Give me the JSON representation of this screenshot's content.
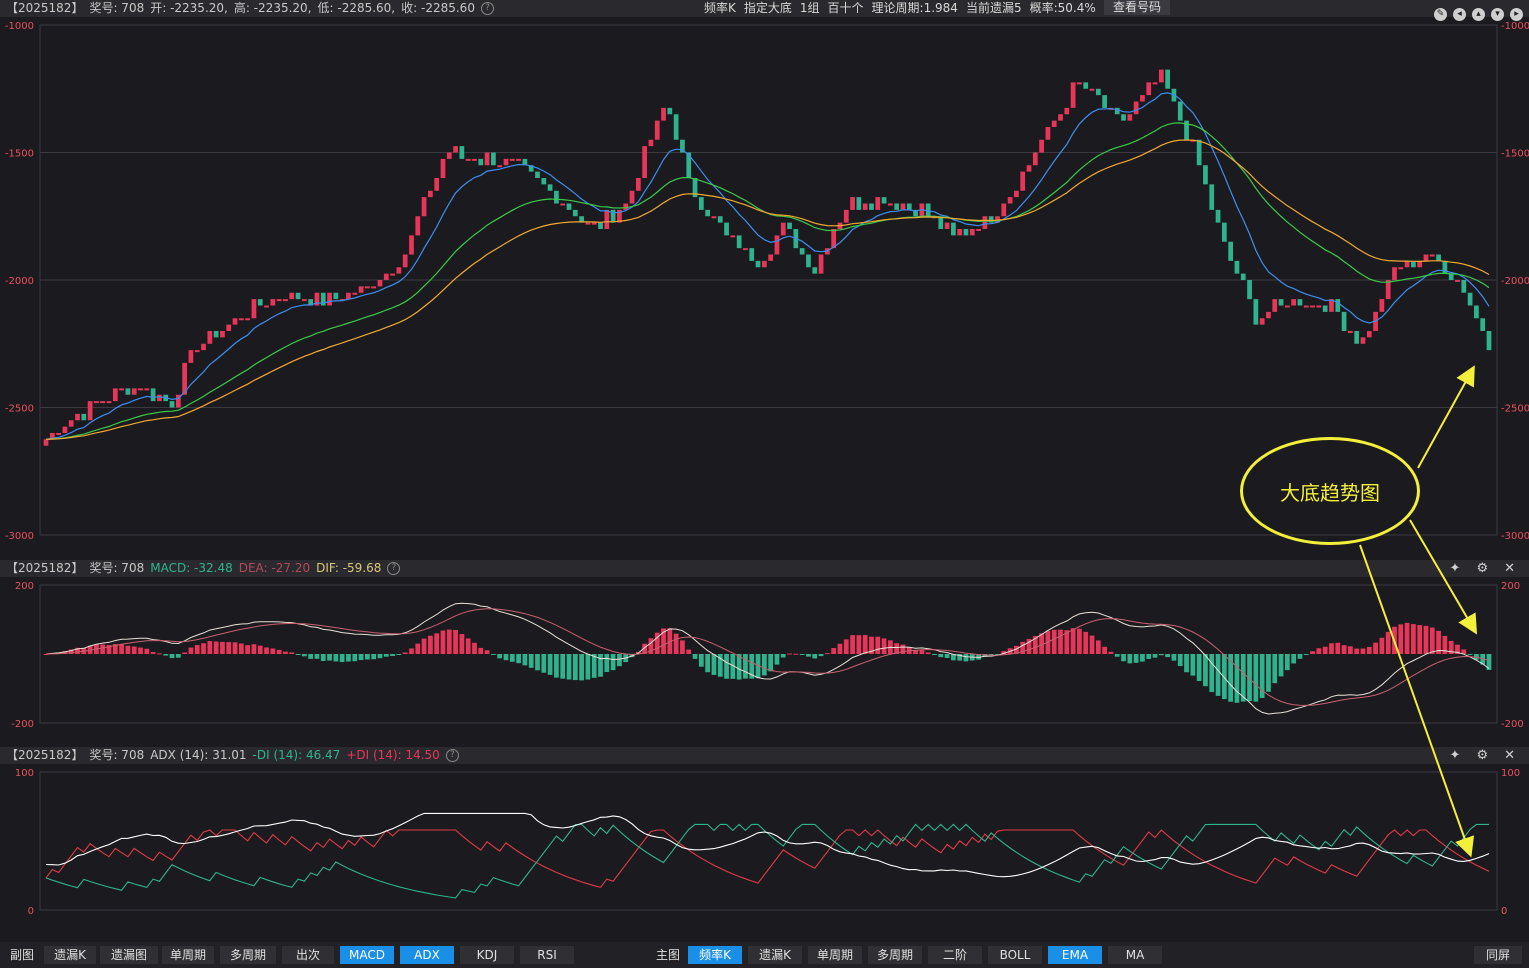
{
  "main": {
    "info": {
      "code": "【2025182】",
      "prize": "奖号: 708",
      "open": "开: -2235.20,",
      "high": "高: -2235.20,",
      "low": "低: -2285.60,",
      "close": "收: -2285.60"
    },
    "center": {
      "a": "频率K",
      "b": "指定大底",
      "c": "1组",
      "d": "百十个",
      "e": "理论周期:1.984",
      "f": "当前遗漏5",
      "g": "概率:50.4%"
    },
    "lookup": "查看号码",
    "y_ticks": [
      "-1000",
      "-1500",
      "-2000",
      "-2500",
      "-3000"
    ]
  },
  "macd": {
    "code": "【2025182】",
    "prize": "奖号: 708",
    "macd": "MACD: -32.48",
    "dea": "DEA: -27.20",
    "dif": "DIF: -59.68",
    "y_ticks": [
      "200",
      "-200"
    ]
  },
  "adx": {
    "code": "【2025182】",
    "prize": "奖号: 708",
    "adx": "ADX (14): 31.01",
    "mdi": "-DI (14): 46.47",
    "pdi": "+DI (14): 14.50",
    "y_ticks": [
      "100",
      "0"
    ]
  },
  "callout": "大底趋势图",
  "tabs": {
    "left_label": "副图",
    "left": [
      "遗漏K",
      "遗漏图",
      "单周期",
      "多周期",
      "出次",
      "MACD",
      "ADX",
      "KDJ",
      "RSI"
    ],
    "right_label": "主图",
    "right": [
      "频率K",
      "遗漏K",
      "单周期",
      "多周期",
      "二阶",
      "BOLL",
      "EMA",
      "MA"
    ],
    "fullscreen": "同屏"
  },
  "colors": {
    "up": "#e8365a",
    "down": "#2fb38e",
    "ema_short": "#3d8ef0",
    "ema_mid": "#3cc94a",
    "ema_long": "#f0a830",
    "callout": "#f3ef3a",
    "active_tab": "#1a8fe8"
  }
}
